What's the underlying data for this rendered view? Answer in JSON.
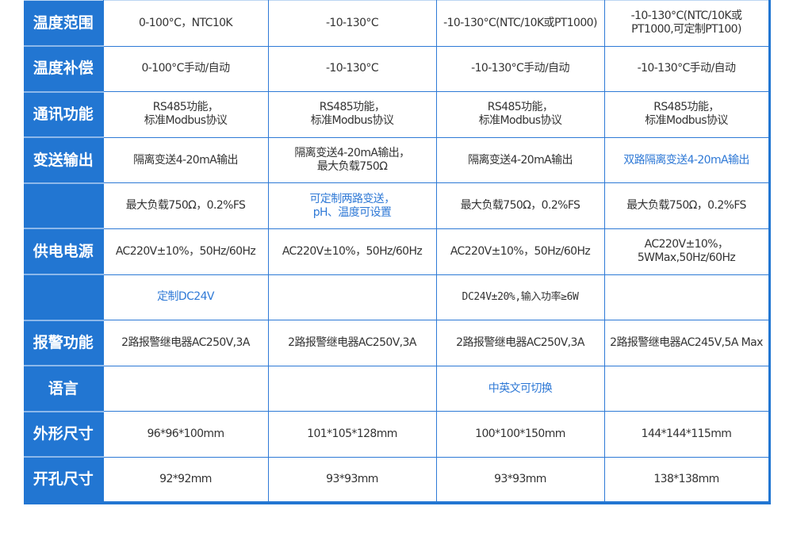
{
  "rows": [
    {
      "label": "温度范围",
      "cells": [
        "0-100°C，NTC10K",
        "-10-130°C",
        "-10-130°C(NTC/10K或PT1000)",
        "-10-130°C(NTC/10K或\nPT1000,可定制PT100)"
      ]
    },
    {
      "label": "温度补偿",
      "cells": [
        "0-100°C手动/自动",
        "-10-130°C",
        "-10-130°C手动/自动",
        "-10-130°C手动/自动"
      ]
    },
    {
      "label": "通讯功能",
      "cells": [
        "RS485功能，\n标准Modbus协议",
        "RS485功能，\n标准Modbus协议",
        "RS485功能，\n标准Modbus协议",
        "RS485功能，\n标准Modbus协议"
      ]
    },
    {
      "label": "变送输出",
      "cells": [
        "隔离变送4-20mA输出",
        "隔离变送4-20mA输出，\n最大负载750Ω",
        "隔离变送4-20mA输出",
        "双路隔离变送4-20mA输出"
      ]
    },
    {
      "label": "",
      "cells": [
        "最大负载750Ω，0.2%FS",
        "可定制两路变送，\npH、温度可设置",
        "最大负载750Ω，0.2%FS",
        "最大负载750Ω，0.2%FS"
      ]
    },
    {
      "label": "供电电源",
      "cells": [
        "AC220V±10%，50Hz/60Hz",
        "AC220V±10%，50Hz/60Hz",
        "AC220V±10%，50Hz/60Hz",
        "AC220V±10%，\n5WMax,50Hz/60Hz"
      ]
    },
    {
      "label": "",
      "cells": [
        "定制DC24V",
        "",
        "DC24V±20%,输入功率≥6W",
        ""
      ]
    },
    {
      "label": "报警功能",
      "cells": [
        "2路报警继电器AC250V,3A",
        "2路报警继电器AC250V,3A",
        "2路报警继电器AC250V,3A",
        "2路报警继电器AC245V,5A Max"
      ]
    },
    {
      "label": "语言",
      "cells": [
        "",
        "",
        "中英文可切换",
        ""
      ]
    },
    {
      "label": "外形尺寸",
      "cells": [
        "96*96*100mm",
        "101*105*128mm",
        "100*100*150mm",
        "144*144*115mm"
      ]
    },
    {
      "label": "开孔尺寸",
      "cells": [
        "92*92mm",
        "93*93mm",
        "93*93mm",
        "138*138mm"
      ]
    }
  ],
  "colors": {
    "header_bg": "#2276d2",
    "border": "#2e7ad6",
    "highlight_text": "#2f79d6",
    "text": "#333333"
  }
}
